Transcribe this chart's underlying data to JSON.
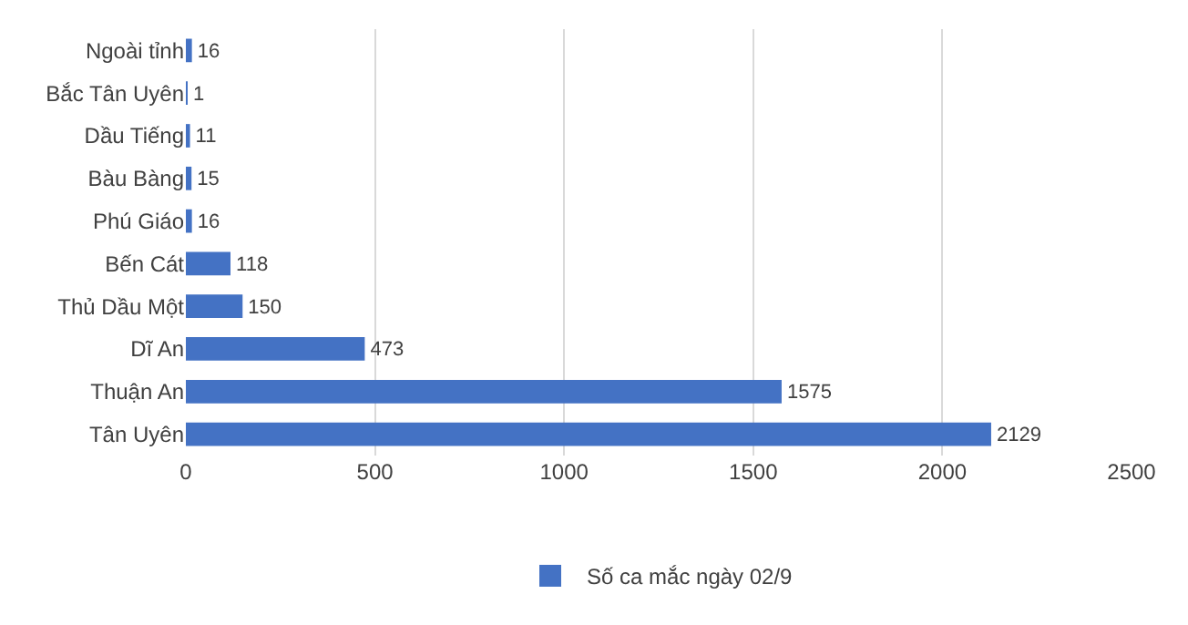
{
  "chart_data": {
    "type": "bar",
    "orientation": "horizontal",
    "categories": [
      "Ngoài tỉnh",
      "Bắc Tân Uyên",
      "Dầu Tiếng",
      "Bàu Bàng",
      "Phú Giáo",
      "Bến Cát",
      "Thủ Dầu Một",
      "Dĩ An",
      "Thuận An",
      "Tân Uyên"
    ],
    "series": [
      {
        "name": "Số ca mắc ngày 02/9",
        "color": "#4472c4",
        "values": [
          16,
          1,
          11,
          15,
          16,
          118,
          150,
          473,
          1575,
          2129
        ]
      }
    ],
    "xlim": [
      0,
      2500
    ],
    "xticks": [
      0,
      500,
      1000,
      1500,
      2000,
      2500
    ],
    "grid": "x",
    "legend": "bottom",
    "data_labels": true
  }
}
